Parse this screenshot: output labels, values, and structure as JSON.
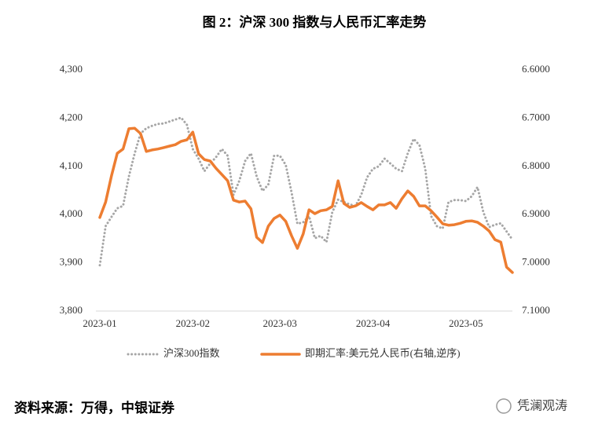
{
  "chart_data": {
    "type": "line",
    "title": "图 2：沪深 300 指数与人民币汇率走势",
    "source": "资料来源：万得，中银证券",
    "watermark": "凭澜观涛",
    "categories": [
      "2023-01",
      null,
      null,
      null,
      null,
      null,
      null,
      null,
      null,
      null,
      null,
      null,
      null,
      null,
      null,
      null,
      "2023-02",
      null,
      null,
      null,
      null,
      null,
      null,
      null,
      null,
      null,
      null,
      null,
      null,
      null,
      null,
      "2023-03",
      null,
      null,
      null,
      null,
      null,
      null,
      null,
      null,
      null,
      null,
      null,
      null,
      null,
      null,
      null,
      "2023-04",
      null,
      null,
      null,
      null,
      null,
      null,
      null,
      null,
      null,
      null,
      null,
      null,
      null,
      null,
      null,
      "2023-05",
      null,
      null,
      null,
      null,
      null,
      null,
      null,
      null
    ],
    "series": [
      {
        "name": "沪深300指数",
        "color": "#a6a6a6",
        "style": "dotted",
        "axis": "y",
        "values": [
          3895,
          3976,
          3995,
          4013,
          4018,
          4079,
          4127,
          4168,
          4179,
          4184,
          4188,
          4189,
          4193,
          4197,
          4201,
          4186,
          4136,
          4116,
          4090,
          4106,
          4119,
          4136,
          4122,
          4041,
          4070,
          4111,
          4127,
          4079,
          4049,
          4062,
          4122,
          4122,
          4103,
          4046,
          3981,
          3984,
          3997,
          3951,
          3956,
          3943,
          4005,
          4031,
          4026,
          4021,
          4018,
          4041,
          4077,
          4095,
          4100,
          4116,
          4106,
          4095,
          4090,
          4127,
          4157,
          4144,
          4095,
          3997,
          3976,
          3971,
          4026,
          4030,
          4030,
          4028,
          4038,
          4057,
          4005,
          3974,
          3979,
          3982,
          3965,
          3948
        ]
      },
      {
        "name": "即期汇率:美元兑人民币(右轴,逆序)",
        "color": "#ed7d31",
        "style": "solid",
        "axis": "y2",
        "values": [
          6.906,
          6.874,
          6.82,
          6.773,
          6.764,
          6.722,
          6.721,
          6.732,
          6.769,
          6.766,
          6.764,
          6.761,
          6.758,
          6.755,
          6.748,
          6.745,
          6.729,
          6.774,
          6.786,
          6.789,
          6.804,
          6.817,
          6.83,
          6.87,
          6.874,
          6.872,
          6.888,
          6.947,
          6.958,
          6.924,
          6.908,
          6.901,
          6.914,
          6.944,
          6.97,
          6.94,
          6.89,
          6.898,
          6.892,
          6.89,
          6.883,
          6.83,
          6.877,
          6.885,
          6.882,
          6.875,
          6.883,
          6.89,
          6.88,
          6.88,
          6.875,
          6.887,
          6.867,
          6.851,
          6.862,
          6.882,
          6.882,
          6.892,
          6.905,
          6.919,
          6.922,
          6.921,
          6.918,
          6.914,
          6.913,
          6.916,
          6.924,
          6.934,
          6.952,
          6.957,
          7.009,
          7.02
        ]
      }
    ],
    "ylim": [
      3800,
      4300
    ],
    "yticks": [
      {
        "value": 3800,
        "label": "3,800"
      },
      {
        "value": 3900,
        "label": "3,900"
      },
      {
        "value": 4000,
        "label": "4,000"
      },
      {
        "value": 4100,
        "label": "4,100"
      },
      {
        "value": 4200,
        "label": "4,200"
      },
      {
        "value": 4300,
        "label": "4,300"
      }
    ],
    "y2lim": [
      7.1,
      6.6
    ],
    "y2ticks": [
      {
        "value": 7.1,
        "label": "7.1000"
      },
      {
        "value": 7.0,
        "label": "7.0000"
      },
      {
        "value": 6.9,
        "label": "6.9000"
      },
      {
        "value": 6.8,
        "label": "6.8000"
      },
      {
        "value": 6.7,
        "label": "6.7000"
      },
      {
        "value": 6.6,
        "label": "6.6000"
      }
    ],
    "grid": false,
    "legend": "bottom"
  }
}
